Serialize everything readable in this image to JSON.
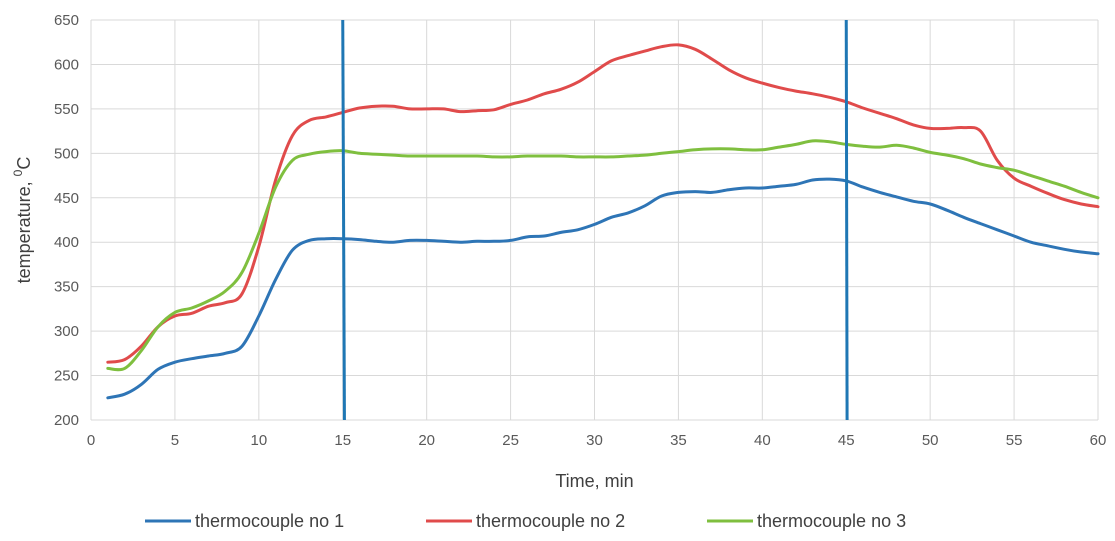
{
  "chart_data": {
    "type": "line",
    "title": "",
    "xlabel": "Time, min",
    "ylabel_main": "temperature, ",
    "ylabel_superscript": "0",
    "ylabel_unit": "C",
    "xlim": [
      0,
      60
    ],
    "ylim": [
      200,
      650
    ],
    "xticks": [
      0,
      5,
      10,
      15,
      20,
      25,
      30,
      35,
      40,
      45,
      50,
      55,
      60
    ],
    "yticks": [
      200,
      250,
      300,
      350,
      400,
      450,
      500,
      550,
      600,
      650
    ],
    "grid": true,
    "legend_position": "bottom",
    "vertical_markers": [
      {
        "x_top": 15,
        "x_bottom": 15.1,
        "color": "#1f77b4"
      },
      {
        "x_top": 45,
        "x_bottom": 45.05,
        "color": "#1f77b4"
      }
    ],
    "series": [
      {
        "name": "thermocouple no 1",
        "color": "#2e75b6",
        "x": [
          1,
          2,
          3,
          4,
          5,
          6,
          7,
          8,
          9,
          10,
          11,
          12,
          13,
          14,
          15,
          16,
          17,
          18,
          19,
          20,
          21,
          22,
          23,
          24,
          25,
          26,
          27,
          28,
          29,
          30,
          31,
          32,
          33,
          34,
          35,
          36,
          37,
          38,
          39,
          40,
          41,
          42,
          43,
          44,
          45,
          46,
          47,
          48,
          49,
          50,
          51,
          52,
          53,
          54,
          55,
          56,
          57,
          58,
          59,
          60
        ],
        "y": [
          225,
          229,
          240,
          257,
          265,
          269,
          272,
          275,
          283,
          317,
          358,
          391,
          402,
          404,
          404,
          403,
          401,
          400,
          402,
          402,
          401,
          400,
          401,
          401,
          402,
          406,
          407,
          411,
          414,
          420,
          428,
          433,
          441,
          452,
          456,
          457,
          456,
          459,
          461,
          461,
          463,
          465,
          470,
          471,
          469,
          462,
          456,
          451,
          446,
          443,
          436,
          428,
          421,
          414,
          407,
          400,
          396,
          392,
          389,
          387
        ]
      },
      {
        "name": "thermocouple no 2",
        "color": "#e04b4b",
        "x": [
          1,
          2,
          3,
          4,
          5,
          6,
          7,
          8,
          9,
          10,
          11,
          12,
          13,
          14,
          15,
          16,
          17,
          18,
          19,
          20,
          21,
          22,
          23,
          24,
          25,
          26,
          27,
          28,
          29,
          30,
          31,
          32,
          33,
          34,
          35,
          36,
          37,
          38,
          39,
          40,
          41,
          42,
          43,
          44,
          45,
          46,
          47,
          48,
          49,
          50,
          51,
          52,
          53,
          54,
          55,
          56,
          57,
          58,
          59,
          60
        ],
        "y": [
          265,
          268,
          283,
          305,
          317,
          320,
          328,
          332,
          342,
          395,
          470,
          520,
          537,
          541,
          546,
          551,
          553,
          553,
          550,
          550,
          550,
          547,
          548,
          549,
          555,
          560,
          567,
          572,
          580,
          592,
          604,
          610,
          615,
          620,
          622,
          617,
          606,
          594,
          585,
          579,
          574,
          570,
          567,
          563,
          558,
          551,
          545,
          539,
          532,
          528,
          528,
          529,
          525,
          492,
          472,
          463,
          455,
          448,
          443,
          440
        ]
      },
      {
        "name": "thermocouple no 3",
        "color": "#7fbf3f",
        "x": [
          1,
          2,
          3,
          4,
          5,
          6,
          7,
          8,
          9,
          10,
          11,
          12,
          13,
          14,
          15,
          16,
          17,
          18,
          19,
          20,
          21,
          22,
          23,
          24,
          25,
          26,
          27,
          28,
          29,
          30,
          31,
          32,
          33,
          34,
          35,
          36,
          37,
          38,
          39,
          40,
          41,
          42,
          43,
          44,
          45,
          46,
          47,
          48,
          49,
          50,
          51,
          52,
          53,
          54,
          55,
          56,
          57,
          58,
          59,
          60
        ],
        "y": [
          258,
          258,
          278,
          305,
          321,
          326,
          334,
          345,
          366,
          410,
          462,
          492,
          499,
          502,
          503,
          500,
          499,
          498,
          497,
          497,
          497,
          497,
          497,
          496,
          496,
          497,
          497,
          497,
          496,
          496,
          496,
          497,
          498,
          500,
          502,
          504,
          505,
          505,
          504,
          504,
          507,
          510,
          514,
          513,
          510,
          508,
          507,
          509,
          506,
          501,
          498,
          494,
          488,
          484,
          481,
          475,
          469,
          463,
          456,
          450
        ]
      }
    ]
  }
}
